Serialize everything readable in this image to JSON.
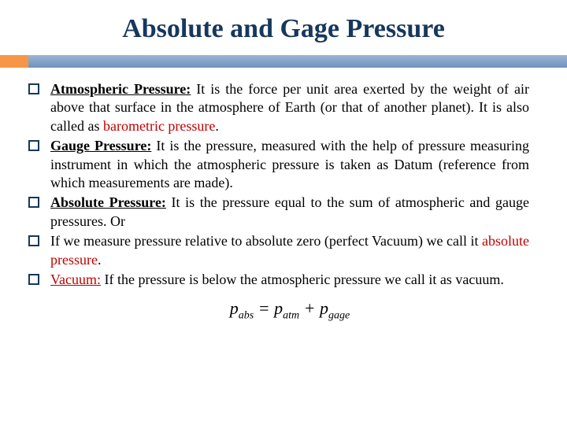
{
  "title": "Absolute and Gage Pressure",
  "accent": {
    "orange": "#f79646",
    "blue_top": "#9ab5d3",
    "blue_bottom": "#6f93bd",
    "title_color": "#17375e"
  },
  "items": [
    {
      "lead_bold_u": "Atmospheric Pressure:",
      "body1": " It is the force per unit area exerted by the weight of air above that surface in the atmosphere of Earth (or that of another planet). It is also called as ",
      "red_tail": "barometric pressure",
      "tail_plain": "."
    },
    {
      "lead_bold_u": "Gauge Pressure:",
      "body1": " It is the pressure, measured with the help of pressure measuring instrument in which the atmospheric pressure is taken as Datum (reference from which measurements are made).",
      "red_tail": "",
      "tail_plain": ""
    },
    {
      "lead_bold_u": "Absolute Pressure:",
      "body1": " It is the pressure equal to the sum of atmospheric and gauge pressures. Or",
      "red_tail": "",
      "tail_plain": ""
    },
    {
      "lead_bold_u": "",
      "body1": "If we measure pressure relative to absolute zero (perfect Vacuum) we call it ",
      "red_tail": "absolute pressure",
      "tail_plain": "."
    },
    {
      "lead_bold_u": "",
      "red_lead_u": "Vacuum:",
      "body1": " If the pressure is below the atmospheric pressure we call it as vacuum.",
      "red_tail": "",
      "tail_plain": ""
    }
  ],
  "formula": {
    "p": "p",
    "abs": "abs",
    "eq": " = ",
    "atm": "atm",
    "plus": " + ",
    "gage": "gage"
  }
}
